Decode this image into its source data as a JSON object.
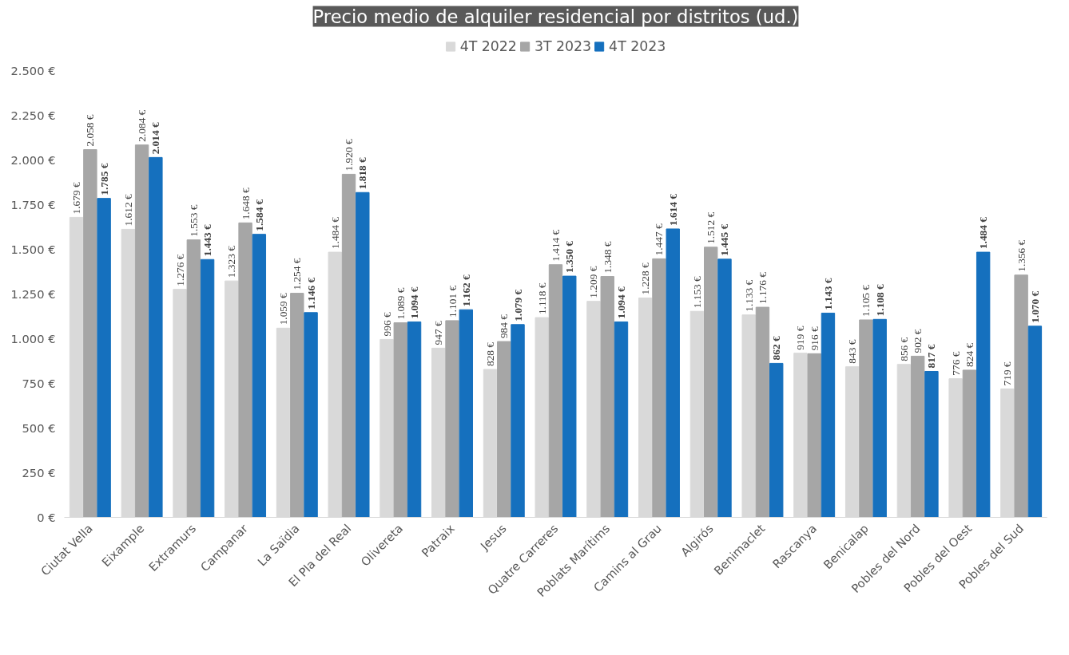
{
  "chart_data": {
    "type": "bar",
    "title": "Precio medio de alquiler residencial por distritos (ud.)",
    "categories": [
      "Ciutat Vella",
      "Eixample",
      "Extramurs",
      "Campanar",
      "La Saïdia",
      "El Pla del Real",
      "Olivereta",
      "Patraix",
      "Jesus",
      "Quatre Carreres",
      "Poblats Marítims",
      "Camins al Grau",
      "Algirós",
      "Benimaclet",
      "Rascanya",
      "Benicalap",
      "Pobles del Nord",
      "Pobles del Oest",
      "Pobles del Sud"
    ],
    "series": [
      {
        "name": "4T 2022",
        "color": "#d9d9d9",
        "values": [
          1679,
          1612,
          1276,
          1323,
          1059,
          1484,
          996,
          947,
          828,
          1118,
          1209,
          1228,
          1153,
          1133,
          919,
          843,
          856,
          776,
          719
        ],
        "value_labels": [
          "1.679 €",
          "1.612 €",
          "1.276 €",
          "1.323 €",
          "1.059 €",
          "1.484 €",
          "996 €",
          "947 €",
          "828 €",
          "1.118 €",
          "1.209 €",
          "1.228 €",
          "1.153 €",
          "1.133 €",
          "919 €",
          "843 €",
          "856 €",
          "776 €",
          "719 €"
        ]
      },
      {
        "name": "3T 2023",
        "color": "#a6a6a6",
        "values": [
          2058,
          2084,
          1553,
          1648,
          1254,
          1920,
          1089,
          1101,
          984,
          1414,
          1348,
          1447,
          1512,
          1176,
          916,
          1105,
          902,
          824,
          1356
        ],
        "value_labels": [
          "2.058 €",
          "2.084 €",
          "1.553 €",
          "1.648 €",
          "1.254 €",
          "1.920 €",
          "1.089 €",
          "1.101 €",
          "984 €",
          "1.414 €",
          "1.348 €",
          "1.447 €",
          "1.512 €",
          "1.176 €",
          "916 €",
          "1.105 €",
          "902 €",
          "824 €",
          "1.356 €"
        ]
      },
      {
        "name": "4T 2023",
        "color": "#1570be",
        "values": [
          1785,
          2014,
          1443,
          1584,
          1146,
          1818,
          1094,
          1162,
          1079,
          1350,
          1094,
          1614,
          1445,
          862,
          1143,
          1108,
          817,
          1484,
          1070
        ],
        "value_labels": [
          "1.785 €",
          "2.014 €",
          "1.443 €",
          "1.584 €",
          "1.146 €",
          "1.818 €",
          "1.094 €",
          "1.162 €",
          "1.079 €",
          "1.350 €",
          "1.094 €",
          "1.614 €",
          "1.445 €",
          "862 €",
          "1.143 €",
          "1.108 €",
          "817 €",
          "1.484 €",
          "1.070 €"
        ]
      }
    ],
    "ylim": [
      0,
      2500
    ],
    "yticks": [
      {
        "value": 0,
        "label": "0 €"
      },
      {
        "value": 250,
        "label": "250 €"
      },
      {
        "value": 500,
        "label": "500 €"
      },
      {
        "value": 750,
        "label": "750 €"
      },
      {
        "value": 1000,
        "label": "1.000 €"
      },
      {
        "value": 1250,
        "label": "1.250 €"
      },
      {
        "value": 1500,
        "label": "1.500 €"
      },
      {
        "value": 1750,
        "label": "1.750 €"
      },
      {
        "value": 2000,
        "label": "2.000 €"
      },
      {
        "value": 2250,
        "label": "2.250 €"
      },
      {
        "value": 2500,
        "label": "2.500 €"
      }
    ],
    "legend": "top",
    "grid": false
  }
}
